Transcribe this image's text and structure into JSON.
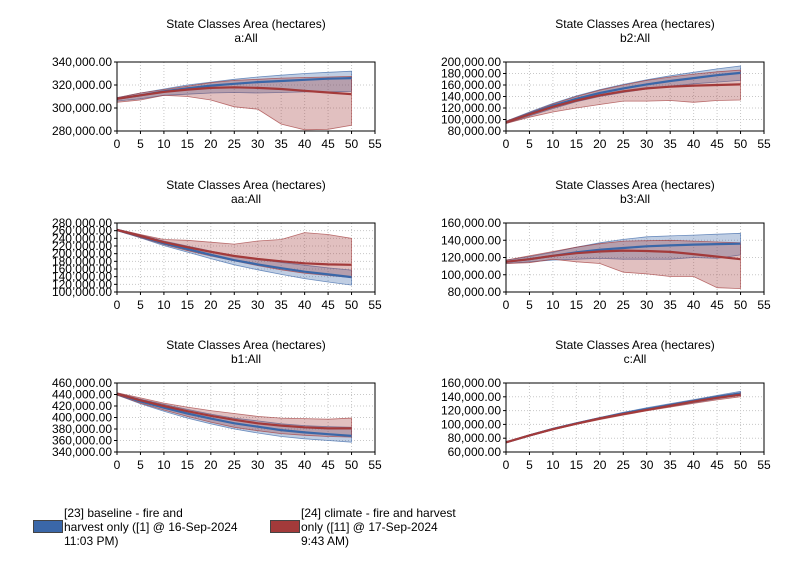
{
  "chart_data": [
    {
      "type": "line",
      "title": "State Classes Area (hectares)",
      "subtitle": "a:All",
      "x": [
        0,
        5,
        10,
        15,
        20,
        25,
        30,
        35,
        40,
        45,
        50
      ],
      "xticks": [
        0,
        5,
        10,
        15,
        20,
        25,
        30,
        35,
        40,
        45,
        50,
        55
      ],
      "xlim": [
        0,
        55
      ],
      "ylim": [
        280000,
        340000
      ],
      "yticks": [
        280000,
        300000,
        320000,
        340000
      ],
      "ytick_labels": [
        "280,000.00",
        "300,000.00",
        "320,000.00",
        "340,000.00"
      ],
      "series": [
        {
          "name": "[23] baseline - fire and harvest only ([1] @ 16-Sep-2024 11:03 PM)",
          "color": "#3a67a8",
          "mean": [
            308000,
            311000,
            314500,
            317000,
            319500,
            321000,
            322500,
            323500,
            324500,
            325500,
            326000
          ],
          "lower": [
            306000,
            308000,
            311000,
            312000,
            313000,
            313500,
            313000,
            313500,
            314000,
            314000,
            314500
          ],
          "upper": [
            309000,
            313000,
            316500,
            320000,
            322500,
            325000,
            327000,
            328500,
            330000,
            331000,
            332000
          ]
        },
        {
          "name": "[24] climate - fire and harvest only ([11] @ 17-Sep-2024 9:43 AM)",
          "color": "#a33a3a",
          "mean": [
            308000,
            311000,
            314000,
            316000,
            317500,
            318000,
            317500,
            316500,
            315000,
            313500,
            312000
          ],
          "lower": [
            305000,
            307000,
            311000,
            310000,
            307000,
            301000,
            299000,
            286000,
            281000,
            281500,
            285000
          ],
          "upper": [
            309000,
            313000,
            316000,
            319000,
            322000,
            324000,
            325000,
            326000,
            326500,
            327000,
            327500
          ]
        }
      ]
    },
    {
      "type": "line",
      "title": "State Classes Area (hectares)",
      "subtitle": "b2:All",
      "x": [
        0,
        5,
        10,
        15,
        20,
        25,
        30,
        35,
        40,
        45,
        50
      ],
      "xticks": [
        0,
        5,
        10,
        15,
        20,
        25,
        30,
        35,
        40,
        45,
        50,
        55
      ],
      "xlim": [
        0,
        55
      ],
      "ylim": [
        80000,
        200000
      ],
      "yticks": [
        80000,
        100000,
        120000,
        140000,
        160000,
        180000,
        200000
      ],
      "ytick_labels": [
        "80,000.00",
        "100,000.00",
        "120,000.00",
        "140,000.00",
        "160,000.00",
        "180,000.00",
        "200,000.00"
      ],
      "series": [
        {
          "name": "[23] baseline - fire and harvest only ([1] @ 16-Sep-2024 11:03 PM)",
          "color": "#3a67a8",
          "mean": [
            95000,
            110000,
            124000,
            136000,
            146000,
            154000,
            161000,
            167000,
            172000,
            177000,
            181000
          ],
          "lower": [
            93000,
            106000,
            119000,
            131000,
            140000,
            147000,
            153000,
            158000,
            162000,
            165000,
            168000
          ],
          "upper": [
            97000,
            113000,
            128000,
            141000,
            152000,
            161000,
            169000,
            176000,
            182000,
            188000,
            193000
          ]
        },
        {
          "name": "[24] climate - fire and harvest only ([11] @ 17-Sep-2024 9:43 AM)",
          "color": "#a33a3a",
          "mean": [
            95000,
            109000,
            122000,
            133000,
            142000,
            149000,
            154000,
            157000,
            159000,
            160000,
            161000
          ],
          "lower": [
            93000,
            104000,
            113000,
            120000,
            126000,
            132000,
            132000,
            133000,
            130000,
            133000,
            134000
          ],
          "upper": [
            97000,
            112000,
            127000,
            140000,
            151000,
            160000,
            168000,
            174000,
            179000,
            183000,
            186000
          ]
        }
      ]
    },
    {
      "type": "line",
      "title": "State Classes Area (hectares)",
      "subtitle": "aa:All",
      "x": [
        0,
        5,
        10,
        15,
        20,
        25,
        30,
        35,
        40,
        45,
        50
      ],
      "xticks": [
        0,
        5,
        10,
        15,
        20,
        25,
        30,
        35,
        40,
        45,
        50,
        55
      ],
      "xlim": [
        0,
        55
      ],
      "ylim": [
        100000,
        280000
      ],
      "yticks": [
        100000,
        120000,
        140000,
        160000,
        180000,
        200000,
        220000,
        240000,
        260000,
        280000
      ],
      "ytick_labels": [
        "100,000.00",
        "120,000.00",
        "140,000.00",
        "160,000.00",
        "180,000.00",
        "200,000.00",
        "220,000.00",
        "240,000.00",
        "260,000.00",
        "280,000.00"
      ],
      "series": [
        {
          "name": "[23] baseline - fire and harvest only ([1] @ 16-Sep-2024 11:03 PM)",
          "color": "#3a67a8",
          "mean": [
            262000,
            245000,
            227000,
            212000,
            197000,
            183000,
            172000,
            162000,
            153000,
            146000,
            139000
          ],
          "lower": [
            260000,
            241000,
            221000,
            204000,
            187000,
            171000,
            158000,
            146000,
            135000,
            126000,
            118000
          ],
          "upper": [
            264000,
            249000,
            233000,
            220000,
            207000,
            195000,
            185000,
            177000,
            170000,
            163000,
            157000
          ]
        },
        {
          "name": "[24] climate - fire and harvest only ([11] @ 17-Sep-2024 9:43 AM)",
          "color": "#a33a3a",
          "mean": [
            262000,
            246000,
            230000,
            217000,
            205000,
            194000,
            186000,
            180000,
            175000,
            172000,
            171000
          ],
          "lower": [
            260000,
            242000,
            224000,
            208000,
            194000,
            181000,
            169000,
            158000,
            149000,
            143000,
            138000
          ],
          "upper": [
            264000,
            250000,
            237000,
            235000,
            230000,
            225000,
            233000,
            237000,
            255000,
            250000,
            240000
          ]
        }
      ]
    },
    {
      "type": "line",
      "title": "State Classes Area (hectares)",
      "subtitle": "b3:All",
      "x": [
        0,
        5,
        10,
        15,
        20,
        25,
        30,
        35,
        40,
        45,
        50
      ],
      "xticks": [
        0,
        5,
        10,
        15,
        20,
        25,
        30,
        35,
        40,
        45,
        50,
        55
      ],
      "xlim": [
        0,
        55
      ],
      "ylim": [
        80000,
        160000
      ],
      "yticks": [
        80000,
        100000,
        120000,
        140000,
        160000
      ],
      "ytick_labels": [
        "80,000.00",
        "100,000.00",
        "120,000.00",
        "140,000.00",
        "160,000.00"
      ],
      "series": [
        {
          "name": "[23] baseline - fire and harvest only ([1] @ 16-Sep-2024 11:03 PM)",
          "color": "#3a67a8",
          "mean": [
            115000,
            118000,
            122000,
            126000,
            129000,
            131000,
            133000,
            134000,
            135000,
            135500,
            136000
          ],
          "lower": [
            113000,
            115000,
            117000,
            118000,
            119000,
            118000,
            118000,
            118000,
            120000,
            119000,
            123000
          ],
          "upper": [
            117000,
            121000,
            126000,
            132000,
            137000,
            141000,
            144000,
            145000,
            146000,
            147000,
            148000
          ]
        },
        {
          "name": "[24] climate - fire and harvest only ([11] @ 17-Sep-2024 9:43 AM)",
          "color": "#a33a3a",
          "mean": [
            115000,
            118000,
            122000,
            125000,
            127000,
            128000,
            127500,
            126500,
            124000,
            121000,
            118000
          ],
          "lower": [
            113000,
            114000,
            118000,
            115000,
            113000,
            103000,
            101000,
            98000,
            98000,
            85000,
            84000
          ],
          "upper": [
            117000,
            122000,
            127000,
            132000,
            136000,
            139000,
            139500,
            140000,
            139000,
            138000,
            137000
          ]
        }
      ]
    },
    {
      "type": "line",
      "title": "State Classes Area (hectares)",
      "subtitle": "b1:All",
      "x": [
        0,
        5,
        10,
        15,
        20,
        25,
        30,
        35,
        40,
        45,
        50
      ],
      "xticks": [
        0,
        5,
        10,
        15,
        20,
        25,
        30,
        35,
        40,
        45,
        50,
        55
      ],
      "xlim": [
        0,
        55
      ],
      "ylim": [
        340000,
        460000
      ],
      "yticks": [
        340000,
        360000,
        380000,
        400000,
        420000,
        440000,
        460000
      ],
      "ytick_labels": [
        "340,000.00",
        "360,000.00",
        "380,000.00",
        "400,000.00",
        "420,000.00",
        "440,000.00",
        "460,000.00"
      ],
      "series": [
        {
          "name": "[23] baseline - fire and harvest only ([1] @ 16-Sep-2024 11:03 PM)",
          "color": "#3a67a8",
          "mean": [
            441000,
            428000,
            417000,
            407000,
            398000,
            390000,
            384000,
            378000,
            374000,
            371000,
            368000
          ],
          "lower": [
            439000,
            424000,
            411000,
            399000,
            389000,
            380000,
            373000,
            367000,
            363000,
            360000,
            357000
          ],
          "upper": [
            443000,
            432000,
            423000,
            414000,
            406000,
            399000,
            394000,
            389000,
            386000,
            384000,
            383000
          ]
        },
        {
          "name": "[24] climate - fire and harvest only ([11] @ 17-Sep-2024 9:43 AM)",
          "color": "#a33a3a",
          "mean": [
            441000,
            430000,
            420000,
            411000,
            403000,
            396000,
            390000,
            386000,
            383000,
            381000,
            381000
          ],
          "lower": [
            439000,
            425000,
            413000,
            402000,
            392000,
            383000,
            377000,
            372000,
            369000,
            367000,
            366000
          ],
          "upper": [
            443000,
            434000,
            425000,
            418000,
            412000,
            407000,
            402000,
            399000,
            398000,
            397000,
            399000
          ]
        }
      ]
    },
    {
      "type": "line",
      "title": "State Classes Area (hectares)",
      "subtitle": "c:All",
      "x": [
        0,
        5,
        10,
        15,
        20,
        25,
        30,
        35,
        40,
        45,
        50
      ],
      "xticks": [
        0,
        5,
        10,
        15,
        20,
        25,
        30,
        35,
        40,
        45,
        50,
        55
      ],
      "xlim": [
        0,
        55
      ],
      "ylim": [
        60000,
        160000
      ],
      "yticks": [
        60000,
        80000,
        100000,
        120000,
        140000,
        160000
      ],
      "ytick_labels": [
        "60,000.00",
        "80,000.00",
        "100,000.00",
        "120,000.00",
        "140,000.00",
        "160,000.00"
      ],
      "series": [
        {
          "name": "[23] baseline - fire and harvest only ([1] @ 16-Sep-2024 11:03 PM)",
          "color": "#3a67a8",
          "mean": [
            74000,
            84000,
            93500,
            101500,
            109000,
            116000,
            122000,
            128000,
            134000,
            140000,
            145000
          ],
          "lower": [
            73500,
            83000,
            92500,
            100500,
            108000,
            114500,
            120500,
            126000,
            131500,
            137000,
            142000
          ],
          "upper": [
            74500,
            85000,
            94500,
            102500,
            110000,
            117500,
            124000,
            130000,
            136000,
            142000,
            148000
          ]
        },
        {
          "name": "[24] climate - fire and harvest only ([11] @ 17-Sep-2024 9:43 AM)",
          "color": "#a33a3a",
          "mean": [
            74000,
            84000,
            93000,
            101000,
            108500,
            115000,
            121000,
            127000,
            133000,
            138500,
            143000
          ],
          "lower": [
            73500,
            83000,
            92000,
            100000,
            107000,
            113500,
            119500,
            125000,
            130500,
            135500,
            140000
          ],
          "upper": [
            74500,
            85000,
            94000,
            102000,
            109500,
            116500,
            122500,
            129000,
            135000,
            141000,
            146000
          ]
        }
      ]
    }
  ],
  "legend": [
    {
      "text": "[23] baseline - fire and\nharvest only ([1] @ 16-Sep-2024\n11:03 PM)",
      "color": "#3a67a8"
    },
    {
      "text": "[24] climate - fire and harvest\nonly ([11] @ 17-Sep-2024\n9:43 AM)",
      "color": "#a33a3a"
    }
  ]
}
